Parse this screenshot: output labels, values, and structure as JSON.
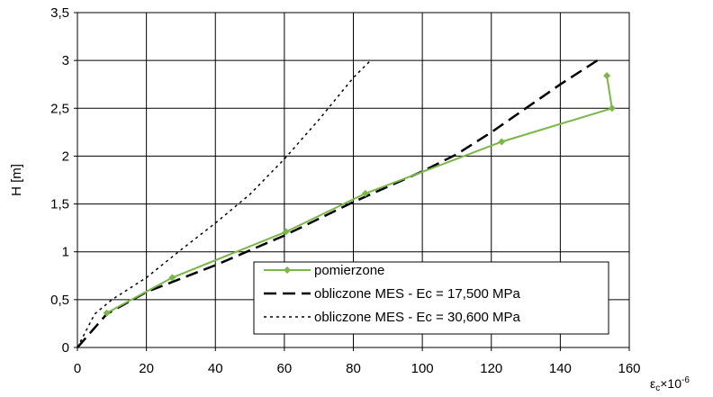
{
  "chart_data": {
    "type": "line",
    "ylabel": "H  [m]",
    "xlabel": "εc×10-6",
    "xlabel_parts": {
      "base": "ε",
      "sub": "c",
      "times": "×10",
      "sup": "-6"
    },
    "xlim": [
      0,
      160
    ],
    "ylim": [
      0,
      3.5
    ],
    "xticks": [
      0,
      20,
      40,
      60,
      80,
      100,
      120,
      140,
      160
    ],
    "xtick_labels": [
      "0",
      "20",
      "40",
      "60",
      "80",
      "100",
      "120",
      "140",
      "160"
    ],
    "yticks": [
      0,
      0.5,
      1,
      1.5,
      2,
      2.5,
      3,
      3.5
    ],
    "ytick_labels": [
      "0",
      "0,5",
      "1",
      "1,5",
      "2",
      "2,5",
      "3",
      "3,5"
    ],
    "grid": true,
    "legend_position": "bottom-right",
    "series": [
      {
        "name": "pomierzone",
        "style": "solid-markers",
        "color": "#7ab648",
        "x": [
          8.5,
          27.5,
          60.5,
          83.5,
          123,
          155,
          153.5
        ],
        "y": [
          0.36,
          0.73,
          1.21,
          1.61,
          2.15,
          2.5,
          2.84
        ]
      },
      {
        "name": "obliczone MES - Ec = 17,500 MPa",
        "style": "dashed",
        "color": "#000000",
        "x": [
          0,
          8.5,
          20,
          40,
          60,
          80,
          100,
          110,
          120,
          130,
          140,
          152
        ],
        "y": [
          0,
          0.35,
          0.58,
          0.86,
          1.17,
          1.52,
          1.84,
          2.02,
          2.25,
          2.5,
          2.75,
          3.03
        ]
      },
      {
        "name": "obliczone MES - Ec = 30,600 MPa",
        "style": "dotted",
        "color": "#000000",
        "x": [
          0,
          5,
          10,
          20,
          30,
          40,
          50,
          60,
          70,
          80,
          85
        ],
        "y": [
          0,
          0.35,
          0.5,
          0.73,
          1.02,
          1.3,
          1.6,
          1.97,
          2.38,
          2.82,
          3.0
        ]
      }
    ]
  }
}
